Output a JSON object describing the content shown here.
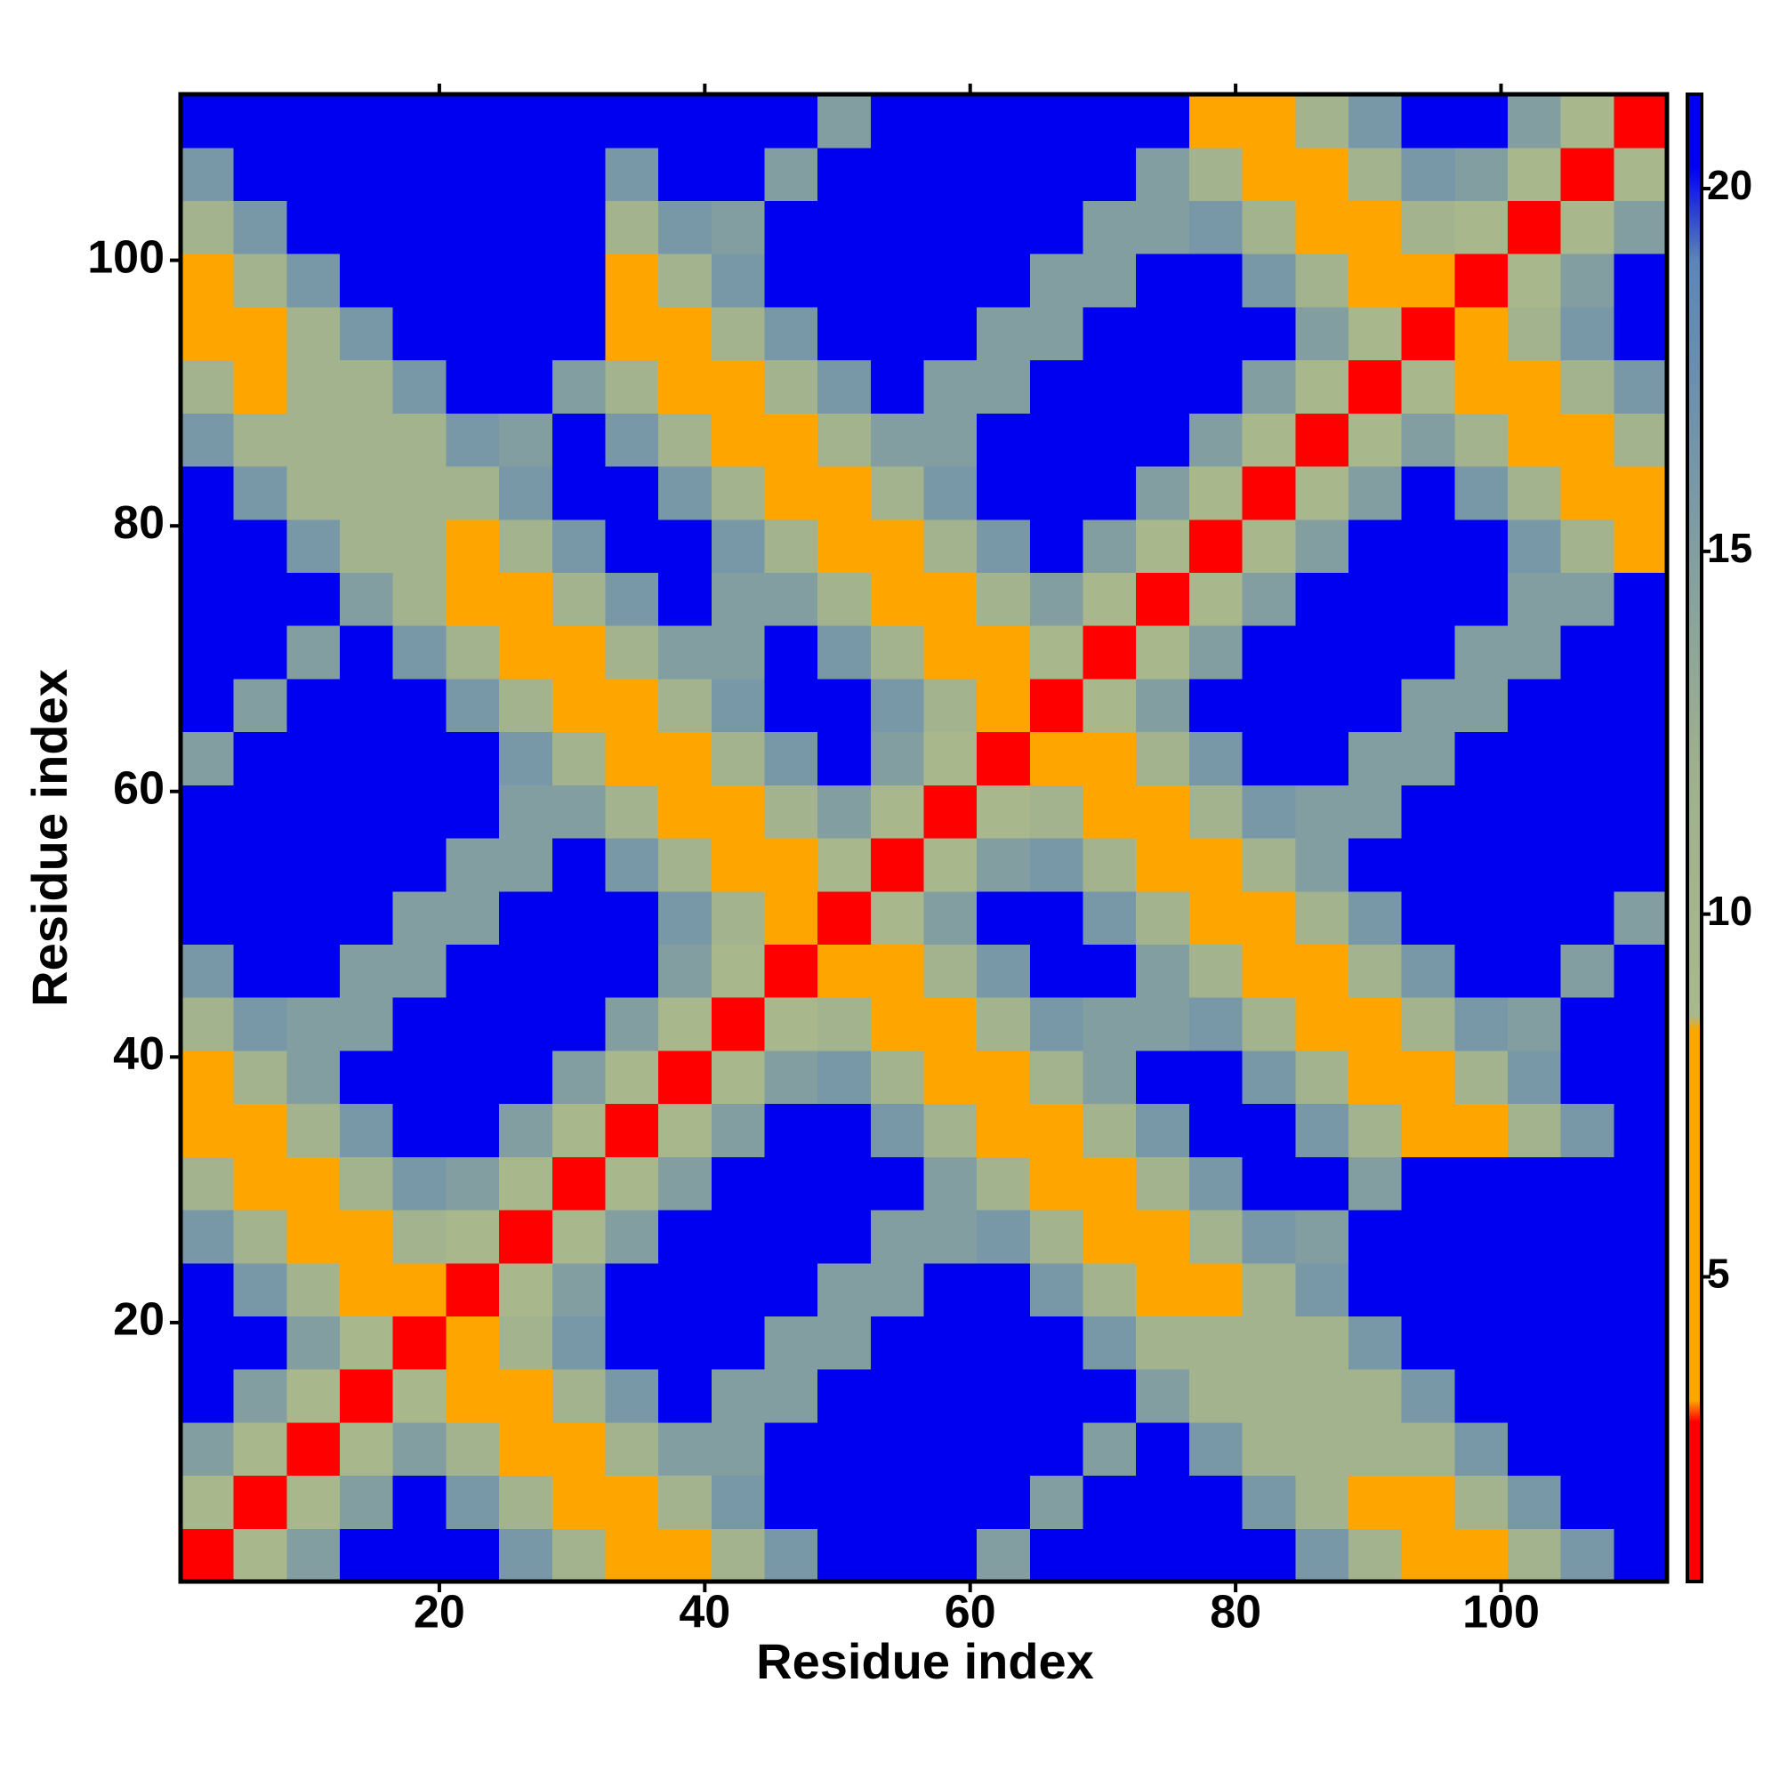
{
  "chart_data": {
    "type": "heatmap",
    "xlabel": "Residue index",
    "ylabel": "Residue index",
    "xbins": [
      0.5,
      4.5,
      8.5,
      12.5,
      16.5,
      20.5,
      24.5,
      28.5,
      32.5,
      36.5,
      40.5,
      44.5,
      48.5,
      52.5,
      56.5,
      60.5,
      64.5,
      68.5,
      72.5,
      76.5,
      80.5,
      84.5,
      88.5,
      92.5,
      96.5,
      100.5,
      104.5,
      108.5,
      112.5
    ],
    "ybins": [
      0.5,
      4.5,
      8.5,
      12.5,
      16.5,
      20.5,
      24.5,
      28.5,
      32.5,
      36.5,
      40.5,
      44.5,
      48.5,
      52.5,
      56.5,
      60.5,
      64.5,
      68.5,
      72.5,
      76.5,
      80.5,
      84.5,
      88.5,
      92.5,
      96.5,
      100.5,
      104.5,
      108.5,
      112.5
    ],
    "values": [
      [
        2,
        9,
        15,
        21,
        21,
        21,
        16,
        11,
        6,
        6,
        11,
        16,
        21,
        21,
        21,
        15,
        21,
        21,
        21,
        21,
        21,
        16,
        11,
        6,
        6,
        11,
        16,
        21
      ],
      [
        9,
        2,
        9,
        15,
        21,
        16,
        11,
        6,
        6,
        11,
        16,
        21,
        21,
        21,
        21,
        21,
        15,
        21,
        21,
        21,
        16,
        11,
        6,
        6,
        11,
        16,
        21,
        21
      ],
      [
        15,
        9,
        2,
        9,
        15,
        11,
        6,
        6,
        11,
        15,
        15,
        21,
        21,
        21,
        21,
        21,
        21,
        15,
        21,
        16,
        11,
        11,
        11,
        11,
        16,
        21,
        21,
        21
      ],
      [
        21,
        15,
        9,
        2,
        9,
        6,
        6,
        11,
        16,
        21,
        15,
        15,
        21,
        21,
        21,
        21,
        21,
        21,
        15,
        11,
        11,
        11,
        11,
        16,
        21,
        21,
        21,
        21
      ],
      [
        21,
        21,
        15,
        9,
        2,
        6,
        11,
        16,
        21,
        21,
        21,
        15,
        15,
        21,
        21,
        21,
        21,
        16,
        11,
        11,
        11,
        11,
        16,
        21,
        21,
        21,
        21,
        21
      ],
      [
        21,
        16,
        11,
        6,
        6,
        2,
        9,
        15,
        21,
        21,
        21,
        21,
        15,
        15,
        21,
        21,
        16,
        11,
        6,
        6,
        11,
        16,
        21,
        21,
        21,
        21,
        21,
        21
      ],
      [
        16,
        11,
        6,
        6,
        11,
        9,
        2,
        9,
        15,
        21,
        21,
        21,
        21,
        15,
        15,
        16,
        11,
        6,
        6,
        11,
        16,
        15,
        21,
        21,
        21,
        21,
        21,
        21
      ],
      [
        11,
        6,
        6,
        11,
        16,
        15,
        9,
        2,
        9,
        15,
        21,
        21,
        21,
        21,
        15,
        11,
        6,
        6,
        11,
        16,
        21,
        21,
        15,
        21,
        21,
        21,
        21,
        21
      ],
      [
        6,
        6,
        11,
        16,
        21,
        21,
        15,
        9,
        2,
        9,
        15,
        21,
        21,
        16,
        11,
        6,
        6,
        11,
        16,
        21,
        21,
        16,
        11,
        6,
        6,
        11,
        16,
        21
      ],
      [
        6,
        11,
        15,
        21,
        21,
        21,
        21,
        15,
        9,
        2,
        9,
        15,
        16,
        11,
        6,
        6,
        11,
        15,
        21,
        21,
        16,
        11,
        6,
        6,
        11,
        16,
        21,
        21
      ],
      [
        11,
        16,
        15,
        15,
        21,
        21,
        21,
        21,
        15,
        9,
        2,
        9,
        11,
        6,
        6,
        11,
        16,
        15,
        15,
        16,
        11,
        6,
        6,
        11,
        16,
        15,
        21,
        21
      ],
      [
        16,
        21,
        21,
        15,
        15,
        21,
        21,
        21,
        21,
        15,
        9,
        2,
        6,
        6,
        11,
        16,
        21,
        21,
        15,
        11,
        6,
        6,
        11,
        16,
        21,
        21,
        15,
        21
      ],
      [
        21,
        21,
        21,
        21,
        15,
        15,
        21,
        21,
        21,
        16,
        11,
        6,
        2,
        9,
        15,
        21,
        21,
        16,
        11,
        6,
        6,
        11,
        16,
        21,
        21,
        21,
        21,
        15
      ],
      [
        21,
        21,
        21,
        21,
        21,
        15,
        15,
        21,
        16,
        11,
        6,
        6,
        9,
        2,
        9,
        15,
        16,
        11,
        6,
        6,
        11,
        15,
        21,
        21,
        21,
        21,
        21,
        21
      ],
      [
        21,
        21,
        21,
        21,
        21,
        21,
        15,
        15,
        11,
        6,
        6,
        11,
        15,
        9,
        2,
        9,
        11,
        6,
        6,
        11,
        16,
        15,
        15,
        21,
        21,
        21,
        21,
        21
      ],
      [
        15,
        21,
        21,
        21,
        21,
        21,
        16,
        11,
        6,
        6,
        11,
        16,
        21,
        15,
        9,
        2,
        6,
        6,
        11,
        16,
        21,
        21,
        15,
        15,
        21,
        21,
        21,
        21
      ],
      [
        21,
        15,
        21,
        21,
        21,
        16,
        11,
        6,
        6,
        11,
        16,
        21,
        21,
        16,
        11,
        6,
        2,
        9,
        15,
        21,
        21,
        21,
        21,
        15,
        15,
        21,
        21,
        21
      ],
      [
        21,
        21,
        15,
        21,
        16,
        11,
        6,
        6,
        11,
        15,
        15,
        21,
        16,
        11,
        6,
        6,
        9,
        2,
        9,
        15,
        21,
        21,
        21,
        21,
        15,
        15,
        21,
        21
      ],
      [
        21,
        21,
        21,
        15,
        11,
        6,
        6,
        11,
        16,
        21,
        15,
        15,
        11,
        6,
        6,
        11,
        15,
        9,
        2,
        9,
        15,
        21,
        21,
        21,
        21,
        15,
        15,
        21
      ],
      [
        21,
        21,
        16,
        11,
        11,
        6,
        11,
        16,
        21,
        21,
        16,
        11,
        6,
        6,
        11,
        16,
        21,
        15,
        9,
        2,
        9,
        15,
        21,
        21,
        21,
        16,
        11,
        6
      ],
      [
        21,
        16,
        11,
        11,
        11,
        11,
        16,
        21,
        21,
        16,
        11,
        6,
        6,
        11,
        16,
        21,
        21,
        21,
        15,
        9,
        2,
        9,
        15,
        21,
        16,
        11,
        6,
        6
      ],
      [
        16,
        11,
        11,
        11,
        11,
        16,
        15,
        21,
        16,
        11,
        6,
        6,
        11,
        15,
        15,
        21,
        21,
        21,
        21,
        15,
        9,
        2,
        9,
        15,
        11,
        6,
        6,
        11
      ],
      [
        11,
        6,
        11,
        11,
        16,
        21,
        21,
        15,
        11,
        6,
        6,
        11,
        16,
        21,
        15,
        15,
        21,
        21,
        21,
        21,
        15,
        9,
        2,
        9,
        6,
        6,
        11,
        16
      ],
      [
        6,
        6,
        11,
        16,
        21,
        21,
        21,
        21,
        6,
        6,
        11,
        16,
        21,
        21,
        21,
        15,
        15,
        21,
        21,
        21,
        21,
        15,
        9,
        2,
        6,
        11,
        16,
        21
      ],
      [
        6,
        11,
        16,
        21,
        21,
        21,
        21,
        21,
        6,
        11,
        16,
        21,
        21,
        21,
        21,
        21,
        15,
        15,
        21,
        21,
        16,
        11,
        6,
        6,
        2,
        9,
        15,
        21
      ],
      [
        11,
        16,
        21,
        21,
        21,
        21,
        21,
        21,
        11,
        16,
        15,
        21,
        21,
        21,
        21,
        21,
        21,
        15,
        15,
        16,
        11,
        6,
        6,
        11,
        9,
        2,
        9,
        15
      ],
      [
        16,
        21,
        21,
        21,
        21,
        21,
        21,
        21,
        16,
        21,
        21,
        15,
        21,
        21,
        21,
        21,
        21,
        21,
        15,
        11,
        6,
        6,
        11,
        16,
        15,
        9,
        2,
        9
      ],
      [
        21,
        21,
        21,
        21,
        21,
        21,
        21,
        21,
        21,
        21,
        21,
        21,
        15,
        21,
        21,
        21,
        21,
        21,
        21,
        6,
        6,
        11,
        16,
        21,
        21,
        15,
        9,
        2
      ]
    ],
    "xlim": [
      0.5,
      112.5
    ],
    "ylim": [
      0.5,
      112.5
    ],
    "xticks": [
      20,
      40,
      60,
      80,
      100
    ],
    "yticks": [
      20,
      40,
      60,
      80,
      100
    ],
    "zlim": [
      0.8,
      21.3
    ],
    "zticks": [
      5,
      10,
      15,
      20
    ],
    "colorscale": [
      [
        0.8,
        "#ff0000"
      ],
      [
        3.0,
        "#ff0000"
      ],
      [
        3.3,
        "#ffa500"
      ],
      [
        8.4,
        "#ffa500"
      ],
      [
        8.6,
        "#a9b98c"
      ],
      [
        12,
        "#9fb08e"
      ],
      [
        19,
        "#5b86b9"
      ],
      [
        20.3,
        "#0000f0"
      ],
      [
        21.3,
        "#0000f0"
      ]
    ]
  }
}
